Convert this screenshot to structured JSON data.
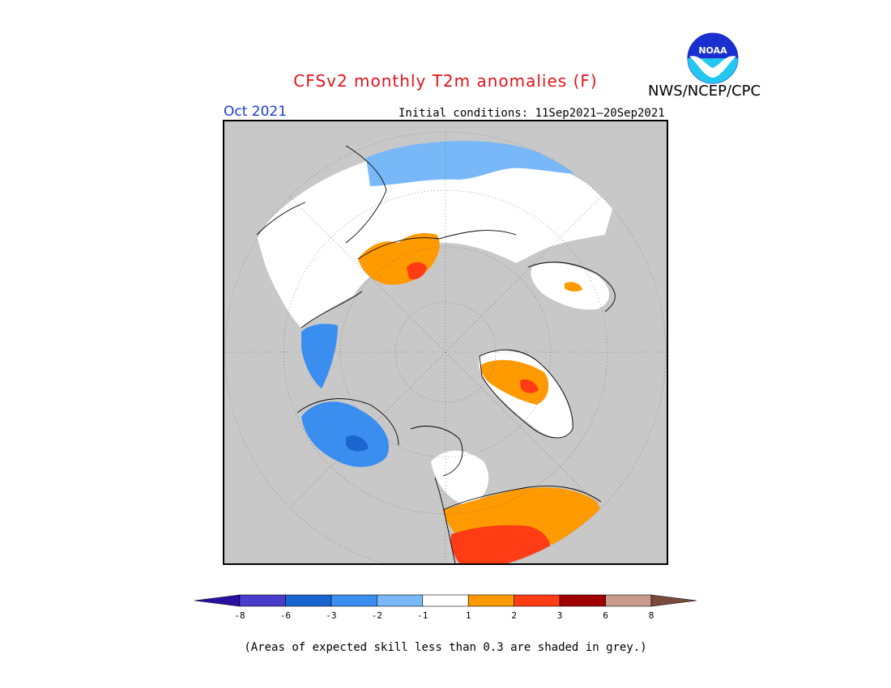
{
  "title": "CFSv2 monthly T2m anomalies (F)",
  "organization": "NWS/NCEP/CPC",
  "logo_text": "NOAA",
  "target_month": "Oct 2021",
  "initial_conditions": "Initial conditions: 11Sep2021—20Sep2021",
  "skill_note": "(Areas of expected skill less than 0.3 are shaded in grey.)",
  "colorbar": {
    "colors": [
      "#2a0fa0",
      "#4a3ccc",
      "#1a66d0",
      "#3a8ef0",
      "#78b8f8",
      "#ffffff",
      "#ff9a00",
      "#ff3c14",
      "#a00000",
      "#c89a8c",
      "#7a4a3a"
    ],
    "labels": [
      "-8",
      "-6",
      "-3",
      "-2",
      "-1",
      "1",
      "2",
      "3",
      "6",
      "8"
    ]
  },
  "map": {
    "projection": "north-polar-stereographic",
    "background_color": "#c8c8c8",
    "grey_meaning": "skill < 0.3"
  }
}
